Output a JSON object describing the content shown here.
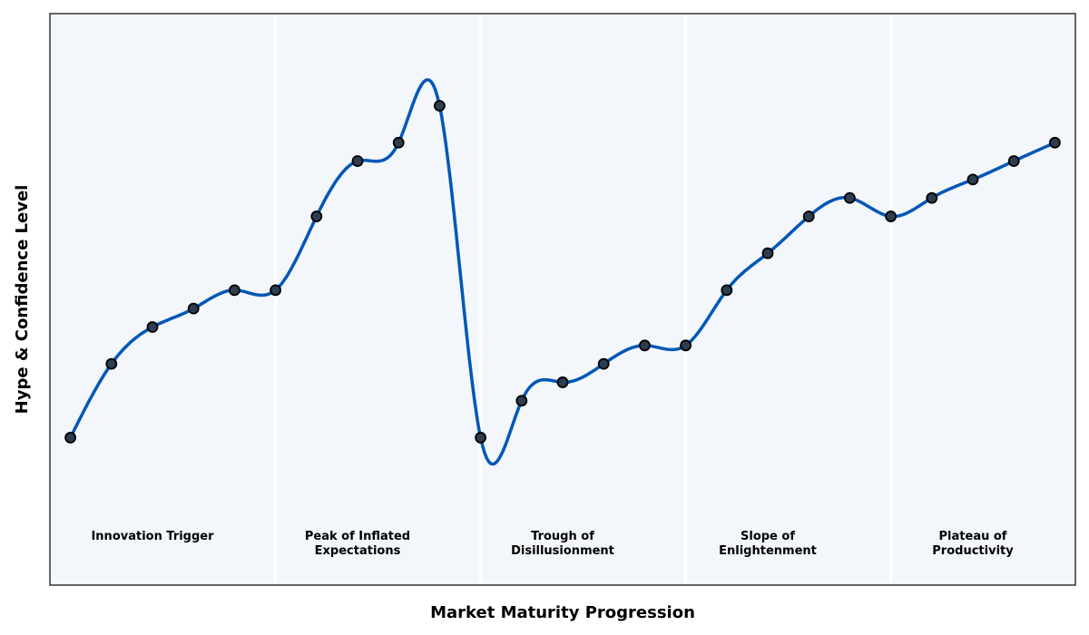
{
  "chart_data": {
    "type": "line",
    "title": "",
    "xlabel": "Market Maturity Progression",
    "ylabel": "Hype & Confidence Level",
    "x": [
      0,
      1,
      2,
      3,
      4,
      5,
      6,
      7,
      8,
      9,
      10,
      11,
      12,
      13,
      14,
      15,
      16,
      17,
      18,
      19,
      20,
      21,
      22,
      23,
      24
    ],
    "series": [
      {
        "values": [
          10,
          30,
          40,
          45,
          50,
          50,
          70,
          85,
          90,
          100,
          10,
          20,
          25,
          30,
          35,
          35,
          50,
          60,
          70,
          75,
          70,
          75,
          80,
          85,
          90
        ]
      }
    ],
    "xlim": [
      -0.5,
      24.5
    ],
    "ylim": [
      -30,
      125
    ],
    "grid": false,
    "smoothing": "cubic-spline",
    "phase_boundaries": [
      5,
      10,
      15,
      20
    ],
    "phases": [
      {
        "label": [
          "Innovation Trigger"
        ],
        "center": 2
      },
      {
        "label": [
          "Peak of Inflated",
          "Expectations"
        ],
        "center": 7
      },
      {
        "label": [
          "Trough of",
          "Disillusionment"
        ],
        "center": 12
      },
      {
        "label": [
          "Slope of",
          "Enlightenment"
        ],
        "center": 17
      },
      {
        "label": [
          "Plateau of",
          "Productivity"
        ],
        "center": 22
      }
    ],
    "colors": {
      "line": "#0057b7",
      "marker_fill": "#2c3e50",
      "marker_edge": "#000000",
      "plot_bg": "#f3f6fa",
      "divider": "#ffffff"
    }
  }
}
